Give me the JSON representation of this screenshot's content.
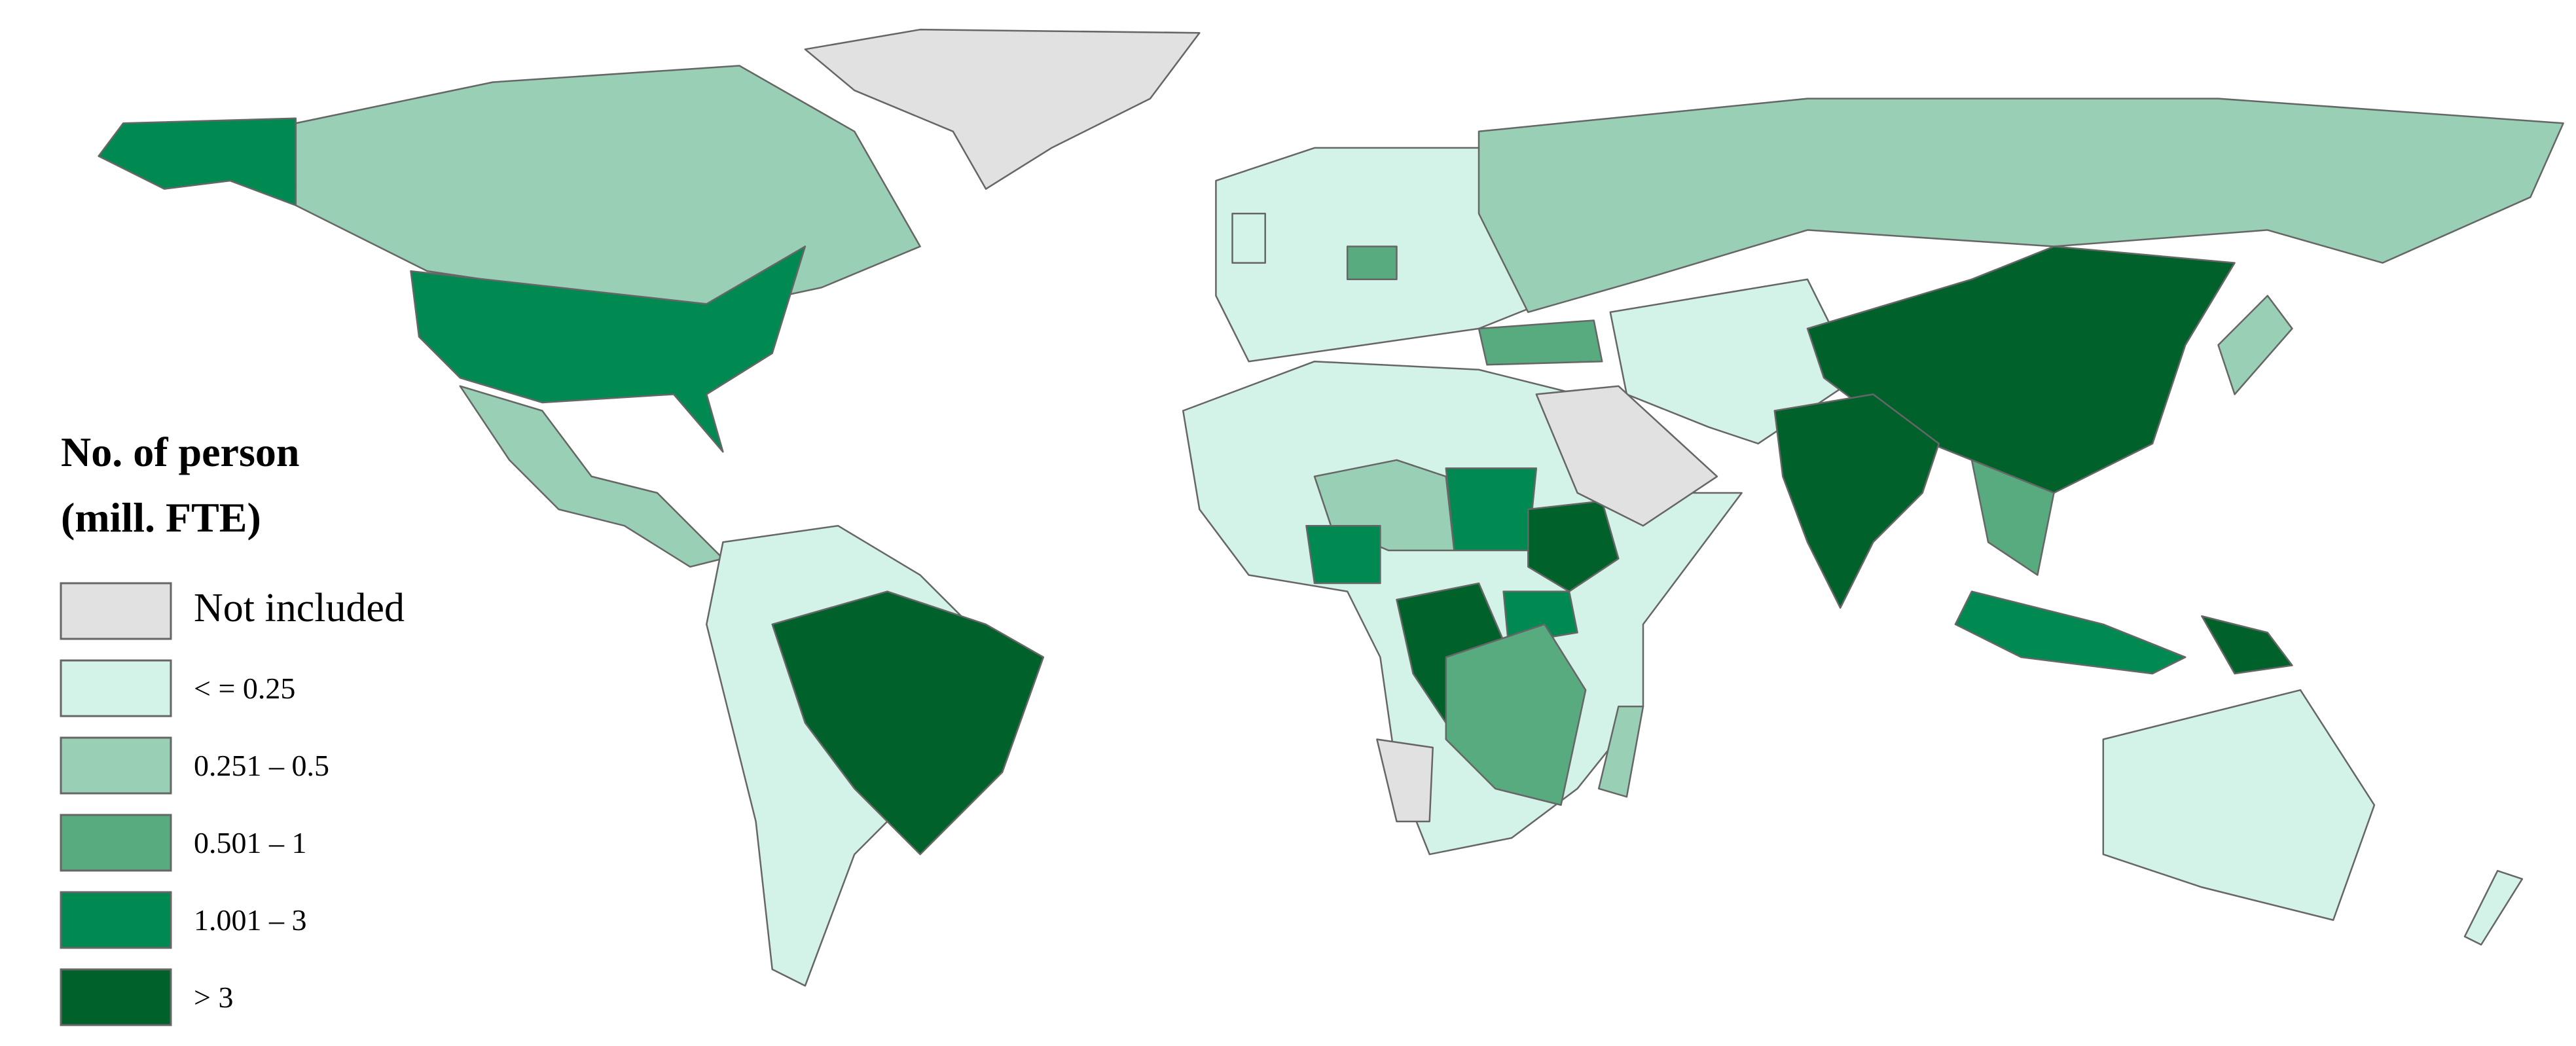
{
  "legend": {
    "title_lines": [
      "No. of person",
      "(mill. FTE)"
    ],
    "items": [
      {
        "label": "Not included",
        "color": "#e1e1e1"
      },
      {
        "label": "< = 0.25",
        "color": "#d4f3e8"
      },
      {
        "label": "0.251 – 0.5",
        "color": "#99d0b5"
      },
      {
        "label": "0.501 – 1",
        "color": "#58ab7f"
      },
      {
        "label": "1.001 – 3",
        "color": "#008a52"
      },
      {
        "label": "> 3",
        "color": "#00612b"
      }
    ]
  }
}
